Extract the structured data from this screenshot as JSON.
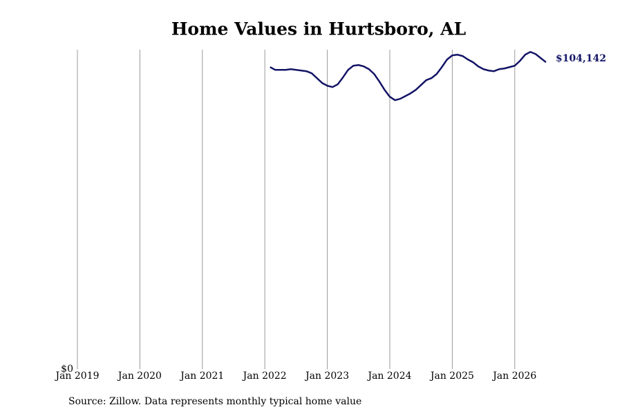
{
  "chart_data": {
    "type": "line",
    "title": "Home Values in Hurtsboro, AL",
    "source": "Source: Zillow. Data represents monthly typical home value",
    "x": [
      "2022-02",
      "2022-03",
      "2022-04",
      "2022-05",
      "2022-06",
      "2022-07",
      "2022-08",
      "2022-09",
      "2022-10",
      "2022-11",
      "2022-12",
      "2023-01",
      "2023-02",
      "2023-03",
      "2023-04",
      "2023-05",
      "2023-06",
      "2023-07",
      "2023-08",
      "2023-09",
      "2023-10",
      "2023-11",
      "2023-12",
      "2024-01",
      "2024-02",
      "2024-03",
      "2024-04",
      "2024-05",
      "2024-06",
      "2024-07",
      "2024-08",
      "2024-09",
      "2024-10",
      "2024-11",
      "2024-12",
      "2025-01",
      "2025-02",
      "2025-03",
      "2025-04",
      "2025-05",
      "2025-06",
      "2025-07",
      "2025-08",
      "2025-09",
      "2025-10",
      "2025-11",
      "2025-12",
      "2026-01",
      "2026-02",
      "2026-03",
      "2026-04",
      "2026-05",
      "2026-06",
      "2026-07"
    ],
    "series": [
      {
        "name": "Home value",
        "color": "#131466",
        "values": [
          102500,
          101560,
          101560,
          101560,
          101790,
          101560,
          101320,
          101090,
          100390,
          98750,
          97110,
          96170,
          95710,
          96640,
          98980,
          101560,
          102960,
          103190,
          102730,
          101790,
          100150,
          97580,
          94770,
          92430,
          91260,
          91730,
          92660,
          93600,
          94770,
          96410,
          98050,
          98750,
          100150,
          102490,
          105070,
          106470,
          106700,
          106240,
          105070,
          104130,
          102730,
          101790,
          101320,
          101090,
          101790,
          102020,
          102490,
          102960,
          104600,
          106700,
          107640,
          106940,
          105530,
          104142
        ],
        "value_labels": [
          null,
          null,
          null,
          null,
          null,
          null,
          null,
          null,
          null,
          null,
          null,
          null,
          null,
          null,
          null,
          null,
          null,
          null,
          null,
          null,
          null,
          null,
          null,
          null,
          null,
          null,
          null,
          null,
          null,
          null,
          null,
          null,
          null,
          null,
          null,
          null,
          null,
          null,
          null,
          null,
          null,
          null,
          null,
          null,
          null,
          null,
          null,
          null,
          null,
          null,
          null,
          null,
          null,
          "$104,142"
        ]
      }
    ],
    "xlim": [
      "2019-01",
      "2026-07"
    ],
    "xticks": [
      {
        "value": "2019-01",
        "label": "Jan 2019"
      },
      {
        "value": "2020-01",
        "label": "Jan 2020"
      },
      {
        "value": "2021-01",
        "label": "Jan 2021"
      },
      {
        "value": "2022-01",
        "label": "Jan 2022"
      },
      {
        "value": "2023-01",
        "label": "Jan 2023"
      },
      {
        "value": "2024-01",
        "label": "Jan 2024"
      },
      {
        "value": "2025-01",
        "label": "Jan 2025"
      },
      {
        "value": "2026-01",
        "label": "Jan 2026"
      }
    ],
    "ylim": [
      0,
      108400
    ],
    "yticks": [
      {
        "value": 0,
        "label": "$0"
      }
    ],
    "grid": true
  }
}
